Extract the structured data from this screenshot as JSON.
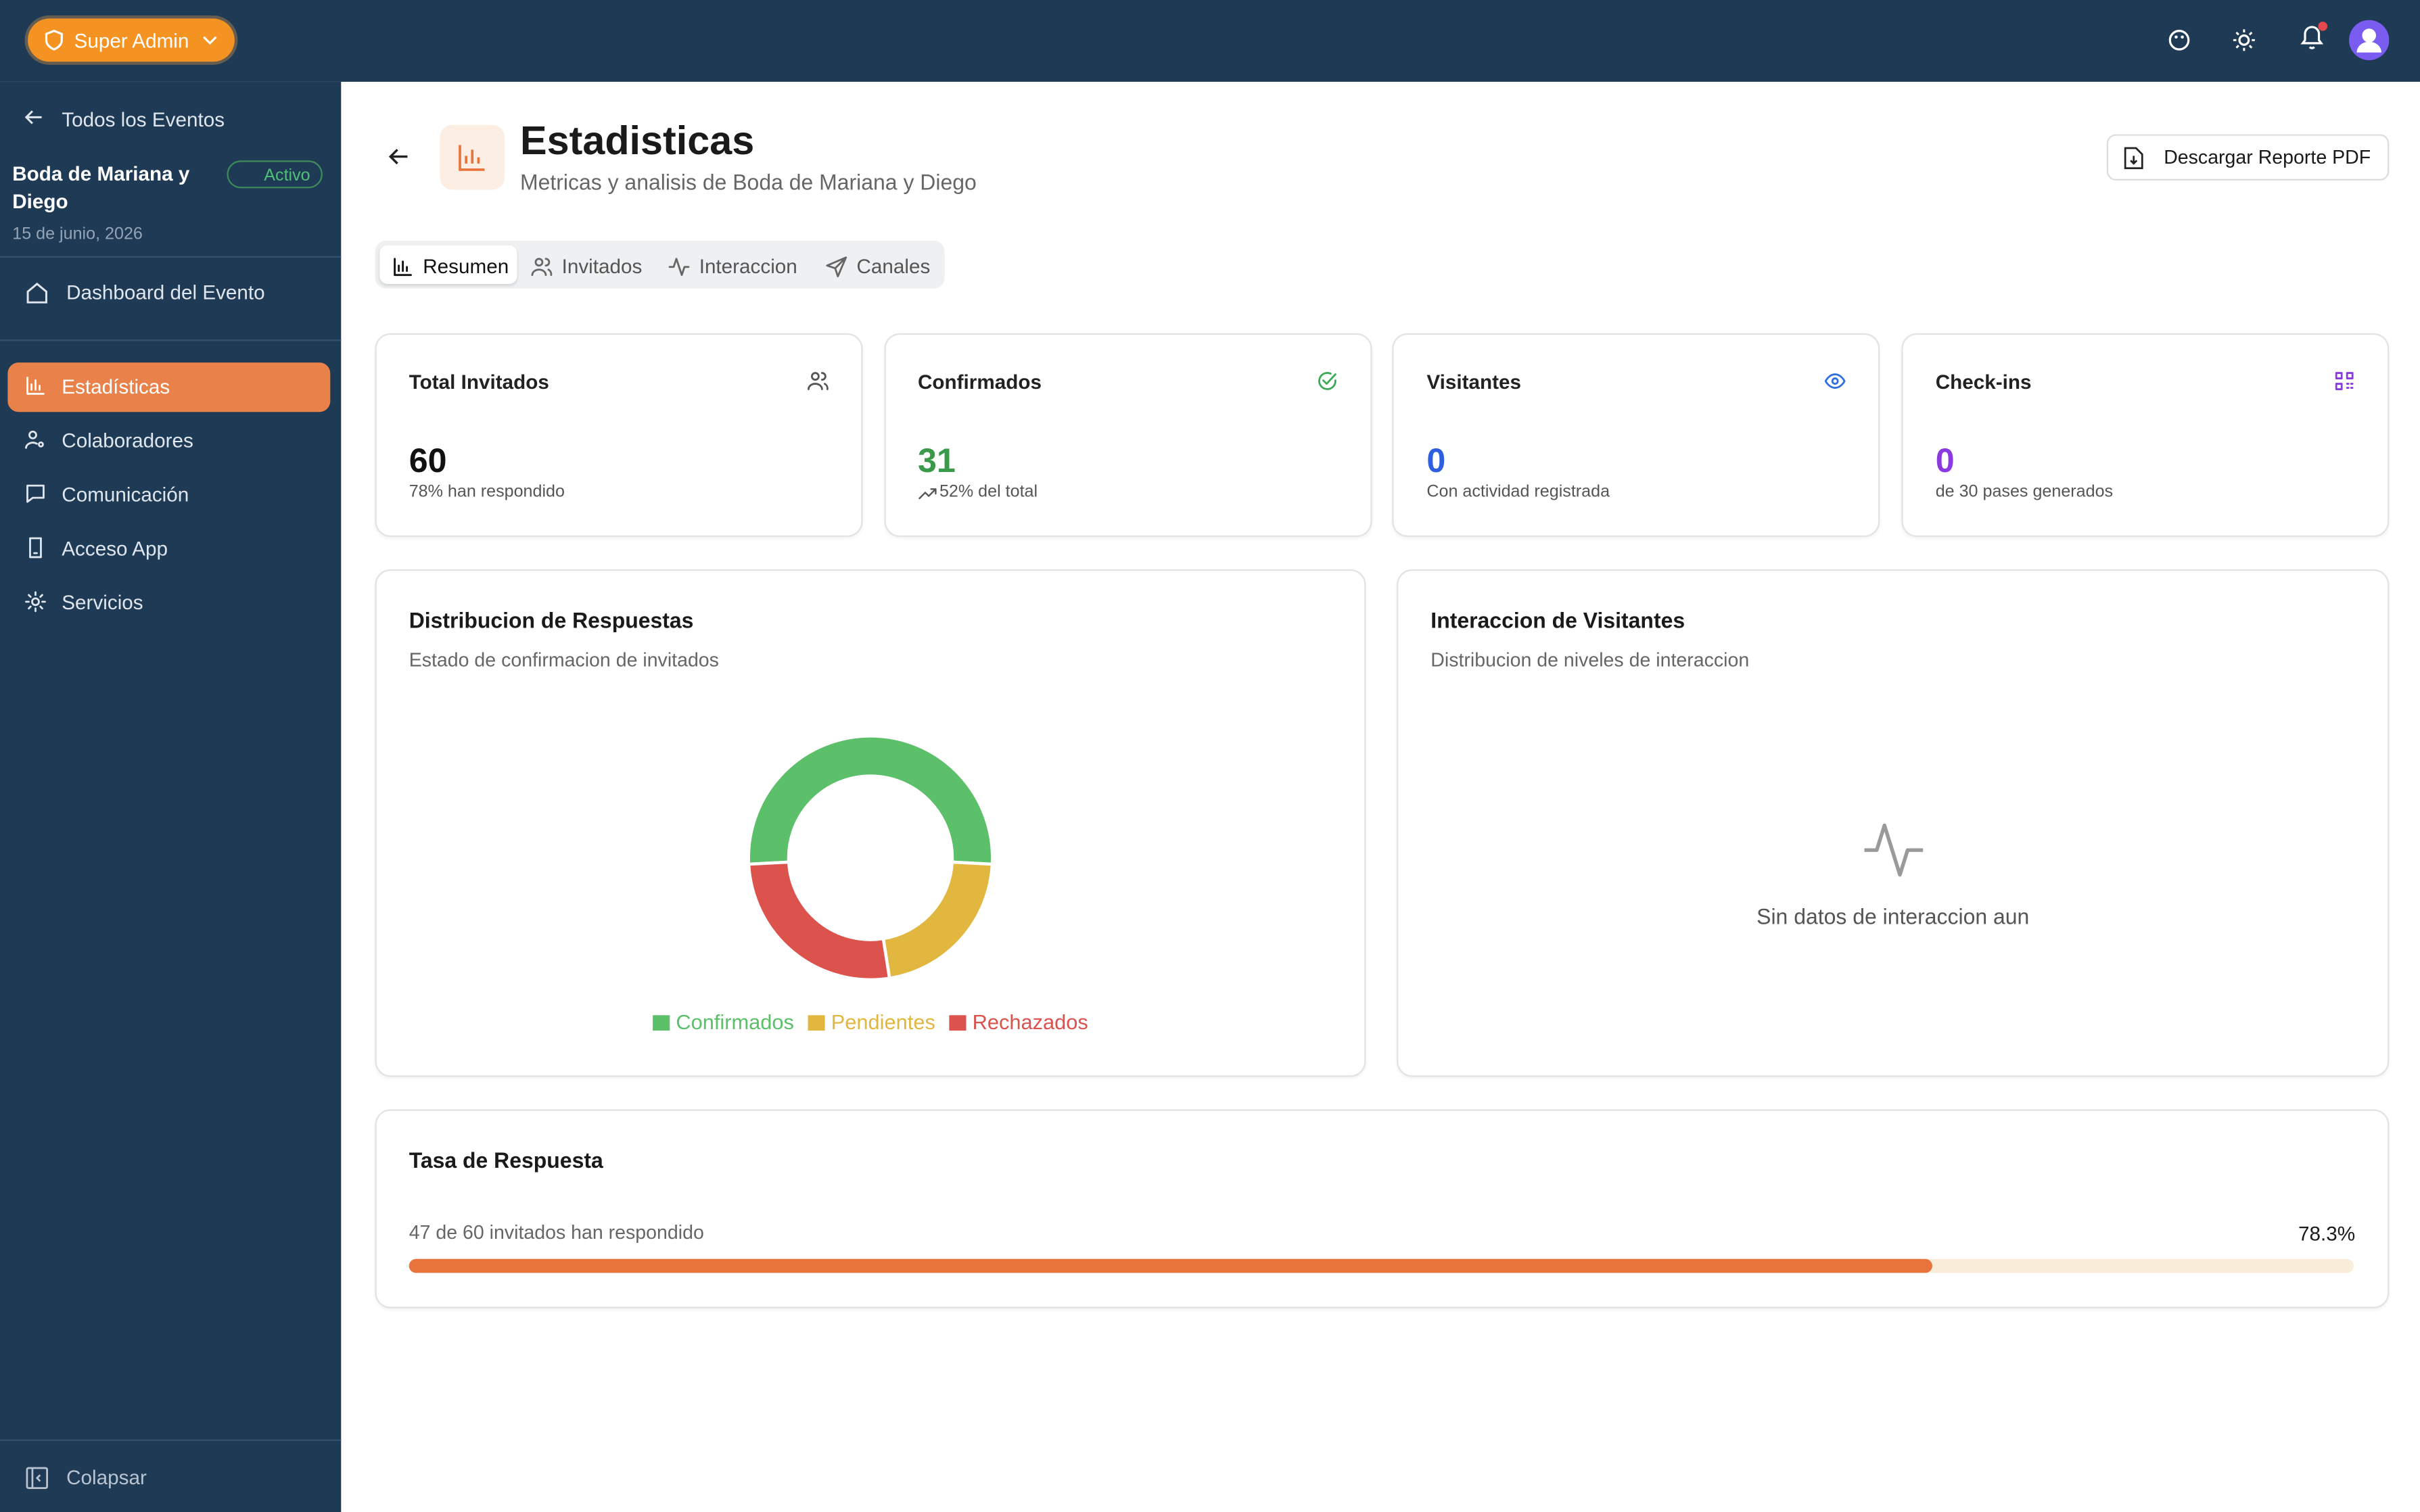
{
  "topbar": {
    "role": "Super Admin"
  },
  "sidebar": {
    "back": "Todos los Eventos",
    "event_name": "Boda de Mariana y Diego",
    "status": "Activo",
    "event_date": "15 de junio, 2026",
    "dashboard": "Dashboard del Evento",
    "menu": [
      "Estadísticas",
      "Colaboradores",
      "Comunicación",
      "Acceso App",
      "Servicios"
    ],
    "collapse": "Colapsar"
  },
  "header": {
    "title": "Estadisticas",
    "subtitle": "Metricas y analisis de Boda de Mariana y Diego",
    "download": "Descargar Reporte PDF"
  },
  "tabs": [
    "Resumen",
    "Invitados",
    "Interaccion",
    "Canales"
  ],
  "stats": [
    {
      "label": "Total Invitados",
      "value": "60",
      "note": "78% han respondido"
    },
    {
      "label": "Confirmados",
      "value": "31",
      "note": "52% del total"
    },
    {
      "label": "Visitantes",
      "value": "0",
      "note": "Con actividad registrada"
    },
    {
      "label": "Check-ins",
      "value": "0",
      "note": "de 30 pases generados"
    }
  ],
  "chart_data": {
    "type": "pie",
    "donut": true,
    "title": "Distribucion de Respuestas",
    "subtitle": "Estado de confirmacion de invitados",
    "categories": [
      "Confirmados",
      "Pendientes",
      "Rechazados"
    ],
    "values": [
      31,
      13,
      16
    ],
    "colors": [
      "#5cbf6a",
      "#e2b740",
      "#dc524c"
    ],
    "legend": "bottom"
  },
  "interaction": {
    "title": "Interaccion de Visitantes",
    "subtitle": "Distribucion de niveles de interaccion",
    "empty": "Sin datos de interaccion aun"
  },
  "response_rate": {
    "title": "Tasa de Respuesta",
    "caption": "47 de 60 invitados han respondido",
    "rate": {
      "value": 78.3,
      "label": "78.3%"
    },
    "xlim": [
      0,
      100
    ]
  }
}
